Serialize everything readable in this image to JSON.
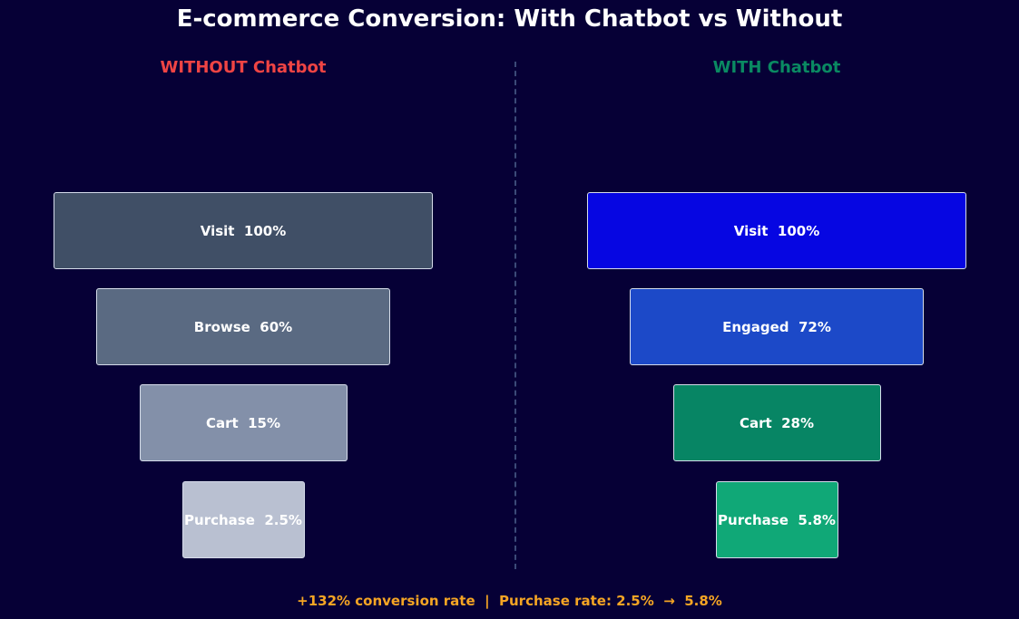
{
  "chart_data": {
    "type": "funnel",
    "title": "E-commerce Conversion: With Chatbot vs Without",
    "panels": [
      {
        "title": "WITHOUT Chatbot",
        "title_color": "#ef4444",
        "stages": [
          {
            "label": "Visit",
            "value": 100,
            "display": "100%",
            "color": "#404f66"
          },
          {
            "label": "Browse",
            "value": 60,
            "display": "60%",
            "color": "#5a6a82"
          },
          {
            "label": "Cart",
            "value": 15,
            "display": "15%",
            "color": "#8390a9"
          },
          {
            "label": "Purchase",
            "value": 2.5,
            "display": "2.5%",
            "color": "#b9c0d1"
          }
        ]
      },
      {
        "title": "WITH Chatbot",
        "title_color": "#0a8a62",
        "stages": [
          {
            "label": "Visit",
            "value": 100,
            "display": "100%",
            "color": "#0606e2"
          },
          {
            "label": "Engaged",
            "value": 72,
            "display": "72%",
            "color": "#1c49c8"
          },
          {
            "label": "Cart",
            "value": 28,
            "display": "28%",
            "color": "#078564"
          },
          {
            "label": "Purchase",
            "value": 5.8,
            "display": "5.8%",
            "color": "#10a877"
          }
        ]
      }
    ],
    "footer": "+132% conversion rate  |  Purchase rate: 2.5%  →  5.8%"
  }
}
